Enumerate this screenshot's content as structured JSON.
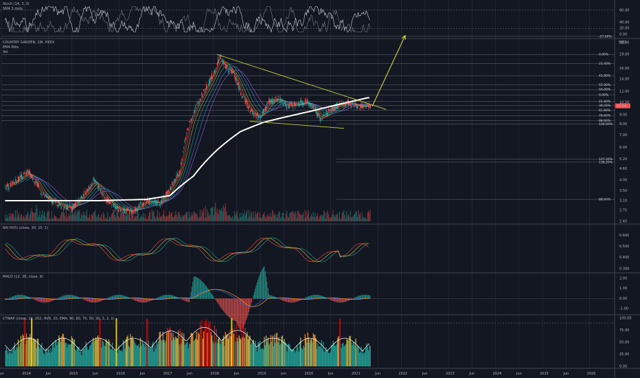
{
  "colors": {
    "background": "#131722",
    "grid": "#2a2e39",
    "price_up": "#26a69a",
    "price_down": "#ef5350",
    "ema200": "#ffffff",
    "trendline": "#c8d23c",
    "arrow": "#e6ee38",
    "stoch_k": "#d1d4dc",
    "fib_line": "#b2b5be",
    "alert_red": "#d40000",
    "alert_yellow": "#ffd400",
    "alert_orange": "#f29b2e",
    "cti_teal": "#26a69a"
  },
  "panes": {
    "stoch": {
      "label": "Stoch (14, 3, 3)",
      "sublabel": "SMA 3 daily",
      "ticks": [
        "80.00",
        "40.00",
        "20.00",
        "0.00"
      ]
    },
    "price": {
      "title": "COUNTRY GARDEN, 1W, HKEX",
      "sub1": "EMA Ribs",
      "sub2": "Vol",
      "currency": "HKD",
      "ticks": [
        "22.00",
        "19.00",
        "16.00",
        "14.00",
        "12.00",
        "10.50",
        "9.00",
        "8.00",
        "7.00",
        "6.00",
        "5.20",
        "4.60",
        "4.00",
        "3.50",
        "3.10",
        "2.75",
        "2.40"
      ],
      "fib_levels": [
        "-27.00%",
        "0.00%",
        "21.40%",
        "41.80%",
        "55.90%",
        "50.00%",
        "0.00%",
        "21.40%",
        "38.20%",
        "61.80%",
        "78.60%",
        "88.60%",
        "100.00%",
        "127.20%",
        "138.20%",
        "88.60%"
      ],
      "last_price": "10.04"
    },
    "rai": {
      "label": "RAI HI(5) (close, 30, 10, 1)",
      "ticks": [
        "0.600",
        "0.500",
        "0.400",
        "0.300"
      ]
    },
    "macd": {
      "label": "MACD (12, 26, close, 9)",
      "ticks": [
        "2.00",
        "1.00",
        "0.00",
        "-1.00"
      ]
    },
    "ctwap": {
      "label": "CTWAP (close, 10, 252, HVR, 20, EMA, 90, 80, 70, 50, 30, 3, 2, 1)",
      "ticks": [
        "100.00",
        "75.00",
        "50.00",
        "25.00",
        "0.00"
      ]
    }
  },
  "time_axis": {
    "labels": [
      "Jun",
      "2014",
      "Jun",
      "2015",
      "Jun",
      "2016",
      "Jun",
      "2017",
      "Jun",
      "2018",
      "Jun",
      "2019",
      "Jun",
      "2020",
      "Jun",
      "2021",
      "Jun",
      "2022",
      "Jun",
      "2023",
      "Jun",
      "2024",
      "Jun",
      "2025",
      "Jun",
      "2026"
    ]
  },
  "chart_data": {
    "type": "line",
    "title": "COUNTRY GARDEN, 1W, HKEX",
    "x_range": [
      "2013-06",
      "2026-06"
    ],
    "y_scale": "log",
    "ylim": [
      2.4,
      22
    ],
    "series": [
      {
        "x": [
          2013.5,
          2013.8,
          2014.0,
          2014.3,
          2014.6,
          2014.9,
          2015.2,
          2015.4,
          2015.6,
          2015.9,
          2016.2,
          2016.5,
          2016.8,
          2017.0,
          2017.2,
          2017.4,
          2017.6,
          2017.8,
          2017.95,
          2018.05,
          2018.2,
          2018.35,
          2018.5,
          2018.7,
          2018.9,
          2019.1,
          2019.3,
          2019.5,
          2019.7,
          2019.9,
          2020.1,
          2020.2,
          2020.4,
          2020.6,
          2020.8,
          2021.0,
          2021.2
        ],
        "values": [
          3.6,
          4.1,
          4.4,
          3.3,
          3.0,
          2.8,
          3.4,
          4.0,
          3.2,
          2.8,
          2.7,
          3.1,
          3.0,
          3.6,
          4.4,
          8.0,
          10.5,
          13.0,
          15.5,
          18.5,
          16.0,
          15.0,
          11.8,
          9.5,
          8.6,
          10.5,
          11.0,
          10.0,
          10.2,
          10.6,
          9.4,
          8.4,
          9.6,
          10.2,
          10.4,
          10.0,
          10.0
        ]
      },
      {
        "name": "EMA 200",
        "x": [
          2013.5,
          2014.5,
          2015.5,
          2016.5,
          2017.0,
          2017.5,
          2018.0,
          2018.5,
          2019.0,
          2019.5,
          2020.0,
          2020.5,
          2021.0,
          2021.2
        ],
        "values": [
          3.1,
          3.1,
          3.1,
          3.15,
          3.3,
          4.2,
          5.8,
          7.3,
          8.2,
          8.8,
          9.4,
          10.1,
          10.8,
          11.1
        ]
      }
    ],
    "annotations": {
      "upper_trendline": [
        [
          2018.0,
          19.0
        ],
        [
          2021.6,
          9.6
        ]
      ],
      "lower_trendline": [
        [
          2018.7,
          8.3
        ],
        [
          2020.7,
          7.6
        ]
      ],
      "projection_arrow": [
        [
          2021.3,
          10.0
        ],
        [
          2022.0,
          24.0
        ]
      ]
    },
    "grid": true
  }
}
